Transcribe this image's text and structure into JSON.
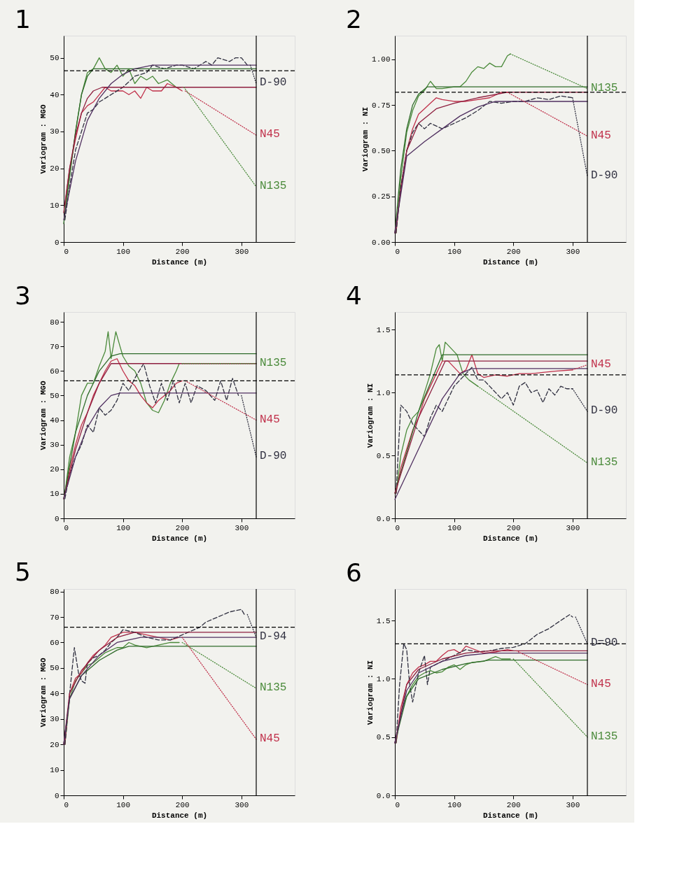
{
  "chart_data": [
    {
      "type": "line",
      "title": "1",
      "xlabel": "Distance (m)",
      "ylabel": "Variogram : MGO",
      "xlim": [
        0,
        390
      ],
      "xticks": [
        0,
        100,
        200,
        300
      ],
      "ylim": [
        0,
        56
      ],
      "yticks": [
        0,
        10,
        20,
        30,
        40,
        50
      ],
      "grid": false,
      "ref_lines": [
        {
          "axis": "y",
          "value": 46.5,
          "line_style": "dashed"
        },
        {
          "axis": "x",
          "value": 325,
          "line_style": "solid"
        }
      ],
      "series": [
        {
          "color": "#4a8a3a",
          "x": [
            2,
            10,
            20,
            30,
            40,
            50,
            60,
            70,
            80,
            90,
            100,
            110,
            120,
            130,
            140,
            150,
            160,
            175,
            190,
            198
          ],
          "values": [
            8,
            18,
            30,
            40,
            46,
            47,
            50,
            47,
            46,
            48,
            45,
            47,
            43,
            45,
            44,
            45,
            43,
            44,
            42,
            42
          ]
        },
        {
          "color": "#c0304a",
          "x": [
            2,
            10,
            20,
            30,
            40,
            50,
            60,
            70,
            80,
            90,
            100,
            110,
            120,
            130,
            140,
            150,
            165,
            175,
            190,
            200
          ],
          "values": [
            10,
            20,
            28,
            35,
            37,
            38,
            40,
            42,
            41,
            41,
            41,
            40,
            41,
            39,
            42,
            41,
            41,
            43,
            42,
            41
          ]
        },
        {
          "color": "#303040",
          "line_style": "dashed",
          "x": [
            2,
            10,
            20,
            30,
            40,
            50,
            60,
            80,
            100,
            120,
            140,
            150,
            170,
            190,
            200,
            220,
            240,
            250,
            260,
            280,
            290,
            300,
            310
          ],
          "values": [
            6,
            15,
            25,
            30,
            35,
            36,
            38,
            40,
            42,
            45,
            46,
            48,
            47,
            48,
            48,
            47,
            49,
            48,
            50,
            49,
            50,
            50,
            48
          ]
        },
        {
          "color": "#2f6b2a",
          "x": [
            0,
            10,
            20,
            30,
            40,
            50,
            325
          ],
          "values": [
            5,
            18,
            30,
            40,
            45,
            47,
            47
          ]
        },
        {
          "color": "#8e1f3f",
          "x": [
            0,
            10,
            20,
            30,
            40,
            50,
            65,
            325
          ],
          "values": [
            8,
            20,
            29,
            35,
            39,
            41,
            42,
            42
          ]
        },
        {
          "color": "#503060",
          "x": [
            0,
            20,
            40,
            60,
            80,
            100,
            120,
            150,
            325
          ],
          "values": [
            6,
            22,
            33,
            39,
            43,
            45.5,
            47,
            48,
            48
          ]
        },
        {
          "name": "D-90",
          "color": "#303040",
          "line_style": "dotted",
          "x": [
            315,
            325
          ],
          "values": [
            48,
            43
          ]
        },
        {
          "name": "N45",
          "color": "#c0304a",
          "line_style": "dotted",
          "x": [
            205,
            325
          ],
          "values": [
            41,
            29
          ]
        },
        {
          "name": "N135",
          "color": "#4a8a3a",
          "line_style": "dotted",
          "x": [
            203,
            325
          ],
          "values": [
            42,
            15
          ]
        }
      ]
    },
    {
      "type": "line",
      "title": "2",
      "xlabel": "Distance (m)",
      "ylabel": "Variogram : NI",
      "xlim": [
        0,
        390
      ],
      "xticks": [
        0,
        100,
        200,
        300
      ],
      "ylim": [
        0,
        1.13
      ],
      "yticks": [
        {
          "value": 0,
          "label": "0.00"
        },
        0.25,
        {
          "value": 0.5,
          "label": "0.50"
        },
        0.75,
        {
          "value": 1,
          "label": "1.00"
        }
      ],
      "grid": false,
      "ref_lines": [
        {
          "axis": "y",
          "value": 0.82,
          "line_style": "dashed"
        },
        {
          "axis": "x",
          "value": 325,
          "line_style": "solid"
        }
      ],
      "series": [
        {
          "color": "#4a8a3a",
          "x": [
            2,
            10,
            20,
            30,
            40,
            50,
            60,
            70,
            80,
            100,
            110,
            120,
            130,
            140,
            150,
            160,
            170,
            180,
            190,
            195
          ],
          "values": [
            0.05,
            0.35,
            0.6,
            0.72,
            0.8,
            0.83,
            0.88,
            0.84,
            0.84,
            0.85,
            0.85,
            0.88,
            0.93,
            0.96,
            0.95,
            0.98,
            0.96,
            0.96,
            1.02,
            1.03
          ]
        },
        {
          "color": "#c0304a",
          "x": [
            2,
            10,
            20,
            30,
            40,
            50,
            60,
            70,
            80,
            100,
            120,
            140,
            160,
            180,
            190
          ],
          "values": [
            0.05,
            0.3,
            0.5,
            0.62,
            0.7,
            0.73,
            0.76,
            0.79,
            0.78,
            0.77,
            0.77,
            0.78,
            0.79,
            0.82,
            0.82
          ]
        },
        {
          "color": "#303040",
          "line_style": "dashed",
          "x": [
            2,
            10,
            20,
            30,
            40,
            50,
            60,
            80,
            100,
            120,
            140,
            160,
            180,
            200,
            220,
            240,
            260,
            280,
            300
          ],
          "values": [
            0.05,
            0.3,
            0.5,
            0.6,
            0.65,
            0.62,
            0.65,
            0.62,
            0.65,
            0.68,
            0.72,
            0.77,
            0.76,
            0.77,
            0.77,
            0.79,
            0.78,
            0.8,
            0.79
          ]
        },
        {
          "color": "#2f6b2a",
          "x": [
            0,
            10,
            20,
            30,
            40,
            55,
            325
          ],
          "values": [
            0.05,
            0.4,
            0.62,
            0.75,
            0.81,
            0.85,
            0.85
          ]
        },
        {
          "color": "#8e1f3f",
          "x": [
            0,
            20,
            40,
            70,
            100,
            140,
            190,
            325
          ],
          "values": [
            0.05,
            0.5,
            0.65,
            0.73,
            0.76,
            0.79,
            0.82,
            0.82
          ]
        },
        {
          "color": "#503060",
          "x": [
            0,
            20,
            50,
            80,
            110,
            140,
            170,
            325
          ],
          "values": [
            0.05,
            0.47,
            0.55,
            0.62,
            0.69,
            0.74,
            0.77,
            0.77
          ]
        },
        {
          "name": "N135",
          "color": "#4a8a3a",
          "line_style": "dotted",
          "x": [
            195,
            325
          ],
          "values": [
            1.03,
            0.84
          ]
        },
        {
          "name": "N45",
          "color": "#c0304a",
          "line_style": "dotted",
          "x": [
            190,
            325
          ],
          "values": [
            0.82,
            0.58
          ]
        },
        {
          "name": "D-90",
          "color": "#303040",
          "line_style": "dotted",
          "x": [
            300,
            325
          ],
          "values": [
            0.79,
            0.36
          ]
        }
      ]
    },
    {
      "type": "line",
      "title": "3",
      "xlabel": "Distance (m)",
      "ylabel": "Variogram : MGO",
      "xlim": [
        0,
        390
      ],
      "xticks": [
        0,
        100,
        200,
        300
      ],
      "ylim": [
        0,
        84
      ],
      "yticks": [
        0,
        10,
        20,
        30,
        40,
        50,
        60,
        70,
        80
      ],
      "grid": false,
      "ref_lines": [
        {
          "axis": "y",
          "value": 56,
          "line_style": "dashed"
        },
        {
          "axis": "x",
          "value": 325,
          "line_style": "solid"
        }
      ],
      "series": [
        {
          "color": "#4a8a3a",
          "x": [
            2,
            10,
            20,
            30,
            40,
            50,
            60,
            70,
            75,
            80,
            88,
            95,
            100,
            110,
            120,
            130,
            140,
            150,
            160,
            170,
            180,
            190,
            195
          ],
          "values": [
            10,
            25,
            35,
            50,
            55,
            55,
            62,
            68,
            76,
            65,
            76,
            70,
            66,
            62,
            60,
            55,
            47,
            44,
            43,
            48,
            55,
            60,
            63
          ]
        },
        {
          "color": "#c0304a",
          "x": [
            2,
            10,
            20,
            30,
            40,
            50,
            60,
            70,
            80,
            90,
            100,
            110,
            120,
            130,
            140,
            150,
            160,
            170,
            180,
            190,
            200
          ],
          "values": [
            10,
            20,
            30,
            38,
            43,
            50,
            55,
            60,
            64,
            65,
            60,
            56,
            54,
            50,
            47,
            45,
            48,
            50,
            52,
            55,
            56
          ]
        },
        {
          "color": "#303040",
          "line_style": "dashed",
          "x": [
            2,
            10,
            20,
            30,
            40,
            50,
            60,
            70,
            80,
            90,
            100,
            110,
            120,
            135,
            145,
            155,
            165,
            175,
            185,
            195,
            205,
            215,
            225,
            240,
            255,
            265,
            275,
            285,
            295
          ],
          "values": [
            8,
            18,
            25,
            30,
            38,
            35,
            45,
            42,
            44,
            48,
            55,
            52,
            57,
            63,
            54,
            47,
            55,
            48,
            56,
            47,
            55,
            47,
            54,
            52,
            48,
            56,
            48,
            57,
            50
          ]
        },
        {
          "color": "#2f6b2a",
          "x": [
            0,
            20,
            40,
            60,
            80,
            95,
            325
          ],
          "values": [
            8,
            35,
            50,
            60,
            66,
            67,
            67
          ]
        },
        {
          "color": "#8e1f3f",
          "x": [
            0,
            20,
            40,
            60,
            80,
            90,
            325
          ],
          "values": [
            8,
            28,
            43,
            55,
            63,
            63,
            63
          ]
        },
        {
          "color": "#503060",
          "x": [
            0,
            20,
            40,
            60,
            80,
            95,
            325
          ],
          "values": [
            8,
            25,
            37,
            45,
            50,
            51,
            51
          ]
        },
        {
          "name": "N135",
          "color": "#4a8a3a",
          "line_style": "dotted",
          "x": [
            200,
            325
          ],
          "values": [
            63,
            63
          ]
        },
        {
          "name": "N45",
          "color": "#c0304a",
          "line_style": "dotted",
          "x": [
            205,
            325
          ],
          "values": [
            56,
            40
          ]
        },
        {
          "name": "D-90",
          "color": "#303040",
          "line_style": "dotted",
          "x": [
            300,
            325
          ],
          "values": [
            50,
            25
          ]
        }
      ]
    },
    {
      "type": "line",
      "title": "4",
      "xlabel": "Distance (m)",
      "ylabel": "Variogram : NI",
      "xlim": [
        0,
        390
      ],
      "xticks": [
        0,
        100,
        200,
        300
      ],
      "ylim": [
        0,
        1.64
      ],
      "yticks": [
        {
          "value": 0,
          "label": "0.0"
        },
        0.5,
        {
          "value": 1,
          "label": "1.0"
        },
        1.5
      ],
      "grid": false,
      "ref_lines": [
        {
          "axis": "y",
          "value": 1.14,
          "line_style": "dashed"
        },
        {
          "axis": "x",
          "value": 325,
          "line_style": "solid"
        }
      ],
      "series": [
        {
          "color": "#4a8a3a",
          "x": [
            2,
            10,
            20,
            30,
            40,
            50,
            60,
            70,
            75,
            80,
            85,
            95,
            105,
            115,
            125,
            140
          ],
          "values": [
            0.2,
            0.5,
            0.7,
            0.8,
            0.85,
            1.0,
            1.15,
            1.35,
            1.38,
            1.25,
            1.4,
            1.35,
            1.3,
            1.15,
            1.1,
            1.05
          ]
        },
        {
          "color": "#c0304a",
          "x": [
            2,
            10,
            20,
            30,
            40,
            50,
            60,
            70,
            80,
            90,
            100,
            110,
            120,
            130,
            140,
            150,
            170,
            190,
            210,
            230,
            250,
            270,
            300
          ],
          "values": [
            0.2,
            0.4,
            0.55,
            0.7,
            0.8,
            0.95,
            1.05,
            1.15,
            1.25,
            1.25,
            1.2,
            1.15,
            1.18,
            1.3,
            1.15,
            1.12,
            1.14,
            1.13,
            1.15,
            1.15,
            1.16,
            1.17,
            1.18
          ]
        },
        {
          "color": "#303040",
          "line_style": "dashed",
          "x": [
            2,
            10,
            20,
            30,
            40,
            50,
            60,
            70,
            80,
            90,
            100,
            110,
            120,
            130,
            140,
            150,
            160,
            170,
            180,
            190,
            200,
            210,
            220,
            230,
            240,
            250,
            260,
            270,
            280,
            290,
            300
          ],
          "values": [
            0.2,
            0.9,
            0.85,
            0.75,
            0.7,
            0.65,
            0.8,
            0.9,
            0.85,
            0.95,
            1.05,
            1.1,
            1.15,
            1.2,
            1.1,
            1.1,
            1.05,
            1.0,
            0.95,
            1.0,
            0.9,
            1.05,
            1.08,
            1.0,
            1.02,
            0.92,
            1.03,
            0.98,
            1.05,
            1.03,
            1.03
          ]
        },
        {
          "color": "#2f6b2a",
          "x": [
            0,
            40,
            80,
            325
          ],
          "values": [
            0.2,
            0.85,
            1.3,
            1.3
          ]
        },
        {
          "color": "#8e1f3f",
          "x": [
            0,
            40,
            85,
            325
          ],
          "values": [
            0.2,
            0.8,
            1.25,
            1.25
          ]
        },
        {
          "color": "#503060",
          "x": [
            0,
            40,
            80,
            110,
            130,
            325
          ],
          "values": [
            0.15,
            0.55,
            0.95,
            1.15,
            1.19,
            1.19
          ]
        },
        {
          "name": "N45",
          "color": "#c0304a",
          "line_style": "dotted",
          "x": [
            300,
            325
          ],
          "values": [
            1.18,
            1.22
          ]
        },
        {
          "name": "D-90",
          "color": "#303040",
          "line_style": "dotted",
          "x": [
            300,
            325
          ],
          "values": [
            1.03,
            0.85
          ]
        },
        {
          "name": "N135",
          "color": "#4a8a3a",
          "line_style": "dotted",
          "x": [
            140,
            325
          ],
          "values": [
            1.05,
            0.44
          ]
        }
      ]
    },
    {
      "type": "line",
      "title": "5",
      "xlabel": "Distance (m)",
      "ylabel": "Variogram : MGO",
      "xlim": [
        0,
        390
      ],
      "xticks": [
        0,
        100,
        200,
        300
      ],
      "ylim": [
        0,
        81
      ],
      "yticks": [
        0,
        10,
        20,
        30,
        40,
        50,
        60,
        70,
        80
      ],
      "grid": false,
      "ref_lines": [
        {
          "axis": "y",
          "value": 66,
          "line_style": "dashed"
        },
        {
          "axis": "x",
          "value": 325,
          "line_style": "solid"
        }
      ],
      "series": [
        {
          "color": "#4a8a3a",
          "x": [
            2,
            10,
            20,
            30,
            40,
            50,
            60,
            70,
            80,
            90,
            100,
            110,
            120,
            140,
            160,
            180,
            195
          ],
          "values": [
            20,
            38,
            45,
            48,
            51,
            52,
            54,
            56,
            57,
            58,
            58,
            60,
            59,
            58,
            59,
            60,
            60
          ]
        },
        {
          "color": "#c0304a",
          "x": [
            2,
            10,
            20,
            30,
            40,
            50,
            60,
            70,
            80,
            90,
            100,
            120,
            140,
            160,
            180,
            195
          ],
          "values": [
            20,
            40,
            46,
            48,
            52,
            55,
            57,
            59,
            62,
            63,
            64,
            64,
            63,
            62,
            61,
            62
          ]
        },
        {
          "color": "#303040",
          "line_style": "dashed",
          "x": [
            2,
            10,
            18,
            25,
            30,
            36,
            40,
            50,
            60,
            70,
            80,
            90,
            100,
            120,
            140,
            160,
            180,
            200,
            210,
            230,
            240,
            260,
            280,
            300,
            305
          ],
          "values": [
            20,
            40,
            58,
            48,
            45,
            44,
            52,
            54,
            55,
            57,
            60,
            62,
            65,
            64,
            62,
            61,
            61,
            63,
            64,
            66,
            68,
            70,
            72,
            73,
            71
          ]
        },
        {
          "color": "#2f6b2a",
          "x": [
            0,
            10,
            30,
            60,
            90,
            110,
            325
          ],
          "values": [
            20,
            38,
            47,
            53,
            57,
            58.5,
            58.5
          ]
        },
        {
          "color": "#8e1f3f",
          "x": [
            0,
            10,
            30,
            60,
            90,
            120,
            325
          ],
          "values": [
            20,
            40,
            49,
            57,
            62,
            64,
            64
          ]
        },
        {
          "color": "#503060",
          "x": [
            0,
            10,
            30,
            60,
            90,
            130,
            325
          ],
          "values": [
            20,
            38,
            47,
            55,
            60,
            62,
            62
          ]
        },
        {
          "name": "D-94",
          "color": "#303040",
          "line_style": "dotted",
          "x": [
            310,
            325
          ],
          "values": [
            71,
            62
          ]
        },
        {
          "name": "N135",
          "color": "#4a8a3a",
          "line_style": "dotted",
          "x": [
            200,
            325
          ],
          "values": [
            60,
            42
          ]
        },
        {
          "name": "N45",
          "color": "#c0304a",
          "line_style": "dotted",
          "x": [
            200,
            325
          ],
          "values": [
            62,
            22
          ]
        }
      ]
    },
    {
      "type": "line",
      "title": "6",
      "xlabel": "Distance (m)",
      "ylabel": "Variogram : NI",
      "xlim": [
        0,
        390
      ],
      "xticks": [
        0,
        100,
        200,
        300
      ],
      "ylim": [
        0,
        1.77
      ],
      "yticks": [
        {
          "value": 0,
          "label": "0.0"
        },
        0.5,
        {
          "value": 1,
          "label": "1.0"
        },
        1.5
      ],
      "grid": false,
      "ref_lines": [
        {
          "axis": "y",
          "value": 1.3,
          "line_style": "dashed"
        },
        {
          "axis": "x",
          "value": 325,
          "line_style": "solid"
        }
      ],
      "series": [
        {
          "color": "#4a8a3a",
          "x": [
            2,
            10,
            20,
            30,
            40,
            50,
            60,
            70,
            80,
            90,
            100,
            110,
            120,
            130,
            150,
            170,
            180,
            195
          ],
          "values": [
            0.45,
            0.7,
            0.85,
            0.95,
            1.02,
            1.05,
            1.07,
            1.05,
            1.06,
            1.1,
            1.12,
            1.08,
            1.12,
            1.14,
            1.15,
            1.19,
            1.17,
            1.17
          ]
        },
        {
          "color": "#c0304a",
          "x": [
            2,
            10,
            20,
            30,
            40,
            50,
            60,
            70,
            80,
            90,
            100,
            110,
            120,
            130,
            150,
            170,
            190,
            200
          ],
          "values": [
            0.45,
            0.75,
            0.95,
            1.05,
            1.1,
            1.12,
            1.15,
            1.15,
            1.2,
            1.24,
            1.25,
            1.22,
            1.28,
            1.26,
            1.22,
            1.23,
            1.25,
            1.24
          ]
        },
        {
          "color": "#303040",
          "line_style": "dashed",
          "x": [
            2,
            8,
            15,
            20,
            25,
            30,
            40,
            50,
            55,
            60,
            80,
            100,
            120,
            140,
            160,
            180,
            200,
            220,
            240,
            260,
            280,
            295,
            300
          ],
          "values": [
            0.45,
            0.95,
            1.3,
            1.25,
            0.95,
            0.8,
            1.05,
            1.2,
            0.95,
            1.1,
            1.15,
            1.2,
            1.25,
            1.23,
            1.24,
            1.26,
            1.27,
            1.3,
            1.38,
            1.43,
            1.5,
            1.55,
            1.53
          ]
        },
        {
          "color": "#2f6b2a",
          "x": [
            0,
            20,
            40,
            80,
            120,
            160,
            325
          ],
          "values": [
            0.45,
            0.85,
            1.0,
            1.08,
            1.13,
            1.16,
            1.16
          ]
        },
        {
          "color": "#8e1f3f",
          "x": [
            0,
            20,
            40,
            80,
            120,
            160,
            325
          ],
          "values": [
            0.45,
            0.95,
            1.08,
            1.17,
            1.22,
            1.24,
            1.24
          ]
        },
        {
          "color": "#503060",
          "x": [
            0,
            20,
            40,
            80,
            120,
            160,
            325
          ],
          "values": [
            0.45,
            0.9,
            1.05,
            1.15,
            1.2,
            1.22,
            1.22
          ]
        },
        {
          "name": "D=90",
          "color": "#303040",
          "line_style": "dotted",
          "x": [
            305,
            325
          ],
          "values": [
            1.53,
            1.3
          ]
        },
        {
          "name": "N45",
          "color": "#c0304a",
          "line_style": "dotted",
          "x": [
            205,
            325
          ],
          "values": [
            1.24,
            0.95
          ]
        },
        {
          "name": "N135",
          "color": "#4a8a3a",
          "line_style": "dotted",
          "x": [
            200,
            325
          ],
          "values": [
            1.17,
            0.5
          ]
        }
      ]
    }
  ]
}
